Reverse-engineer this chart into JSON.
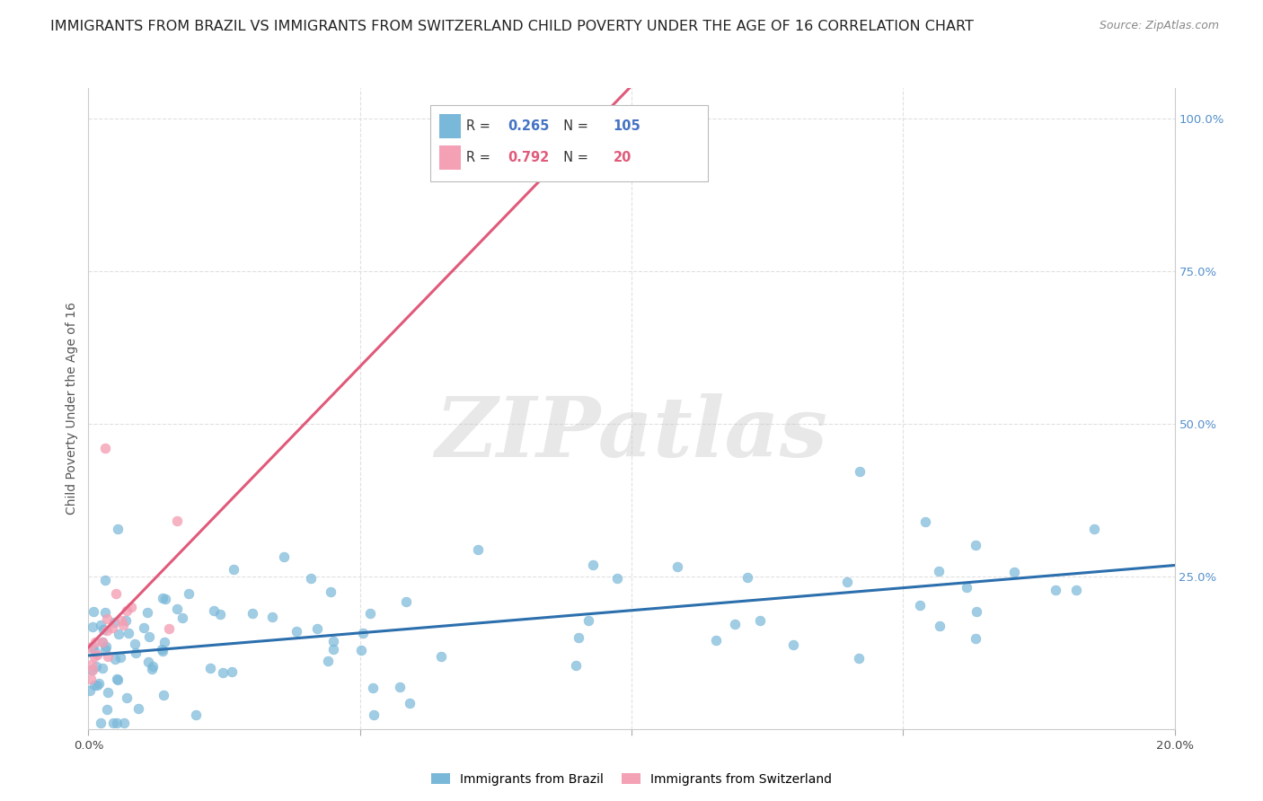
{
  "title": "IMMIGRANTS FROM BRAZIL VS IMMIGRANTS FROM SWITZERLAND CHILD POVERTY UNDER THE AGE OF 16 CORRELATION CHART",
  "source": "Source: ZipAtlas.com",
  "ylabel": "Child Poverty Under the Age of 16",
  "xlim": [
    0.0,
    0.2
  ],
  "ylim": [
    0.0,
    1.05
  ],
  "xtick_vals": [
    0.0,
    0.05,
    0.1,
    0.15,
    0.2
  ],
  "xtick_labels": [
    "0.0%",
    "",
    "",
    "",
    "20.0%"
  ],
  "ytick_right_labels": [
    "100.0%",
    "75.0%",
    "50.0%",
    "25.0%"
  ],
  "ytick_right_vals": [
    1.0,
    0.75,
    0.5,
    0.25
  ],
  "brazil_color": "#7ab8d9",
  "brazil_line_color": "#2c6fad",
  "switzerland_color": "#f4a0b5",
  "switzerland_line_color": "#e05a7a",
  "brazil_R": 0.265,
  "brazil_N": 105,
  "switzerland_R": 0.792,
  "switzerland_N": 20,
  "watermark_text": "ZIPatlas",
  "background_color": "#ffffff",
  "grid_color": "#e0e0e0",
  "title_fontsize": 11.5,
  "axis_label_fontsize": 10,
  "tick_fontsize": 9.5,
  "legend_label_brazil": "Immigrants from Brazil",
  "legend_label_switzerland": "Immigrants from Switzerland"
}
